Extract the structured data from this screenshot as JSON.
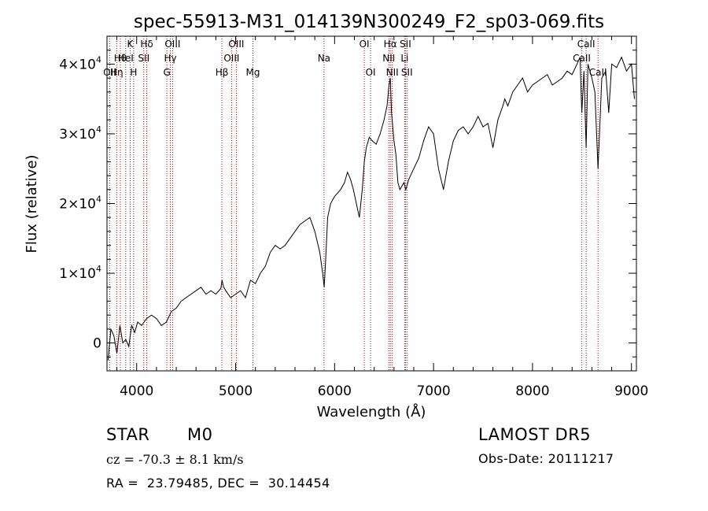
{
  "chart_data": {
    "type": "line",
    "title": "spec-55913-M31_014139N300249_F2_sp03-069.fits",
    "xlabel": "Wavelength (Å)",
    "ylabel": "Flux (relative)",
    "xlim": [
      3700,
      9050
    ],
    "ylim": [
      -4000,
      44000
    ],
    "x_ticks": [
      4000,
      5000,
      6000,
      7000,
      8000,
      9000
    ],
    "x_tick_labels": [
      "4000",
      "5000",
      "6000",
      "7000",
      "8000",
      "9000"
    ],
    "y_ticks": [
      0,
      10000,
      20000,
      30000,
      40000
    ],
    "y_tick_labels": [
      {
        "base": "0",
        "exp": ""
      },
      {
        "base": "1×10",
        "exp": "4"
      },
      {
        "base": "2×10",
        "exp": "4"
      },
      {
        "base": "3×10",
        "exp": "4"
      },
      {
        "base": "4×10",
        "exp": "4"
      }
    ],
    "line_color": "#000000",
    "marker_color": "#aa0000",
    "series": [
      {
        "x": [
          3710,
          3740,
          3770,
          3800,
          3830,
          3860,
          3890,
          3920,
          3950,
          3980,
          4010,
          4050,
          4100,
          4150,
          4200,
          4250,
          4300,
          4350,
          4400,
          4450,
          4500,
          4550,
          4600,
          4650,
          4700,
          4750,
          4800,
          4850,
          4862,
          4880,
          4900,
          4950,
          5000,
          5050,
          5100,
          5150,
          5200,
          5250,
          5300,
          5350,
          5400,
          5450,
          5500,
          5550,
          5600,
          5650,
          5700,
          5750,
          5800,
          5850,
          5880,
          5895,
          5910,
          5930,
          5960,
          6000,
          6030,
          6060,
          6100,
          6130,
          6160,
          6190,
          6220,
          6250,
          6280,
          6300,
          6320,
          6350,
          6380,
          6420,
          6460,
          6500,
          6530,
          6550,
          6563,
          6575,
          6600,
          6620,
          6640,
          6660,
          6680,
          6700,
          6720,
          6750,
          6800,
          6850,
          6900,
          6950,
          7000,
          7050,
          7100,
          7150,
          7200,
          7250,
          7300,
          7350,
          7400,
          7450,
          7500,
          7550,
          7600,
          7650,
          7700,
          7720,
          7750,
          7800,
          7850,
          7900,
          7950,
          8000,
          8050,
          8100,
          8150,
          8200,
          8250,
          8300,
          8350,
          8400,
          8450,
          8480,
          8498,
          8520,
          8542,
          8560,
          8600,
          8630,
          8662,
          8700,
          8740,
          8770,
          8800,
          8850,
          8900,
          8950,
          9000,
          9030
        ],
        "y": [
          -2500,
          2000,
          1000,
          -1500,
          2500,
          0,
          500,
          -500,
          2500,
          1500,
          3000,
          2500,
          3500,
          4000,
          3500,
          2500,
          3000,
          4500,
          5000,
          6000,
          6500,
          7000,
          7500,
          8000,
          7000,
          7500,
          7000,
          7800,
          9000,
          8000,
          7500,
          6500,
          7000,
          7500,
          6500,
          9000,
          8500,
          10000,
          11000,
          13000,
          14000,
          13500,
          14000,
          15000,
          16000,
          17000,
          17500,
          18000,
          16000,
          13000,
          10000,
          8000,
          12000,
          18000,
          20000,
          21000,
          21500,
          22000,
          23000,
          24500,
          23500,
          22000,
          20000,
          18000,
          22000,
          26000,
          28000,
          29500,
          29000,
          28500,
          30000,
          32000,
          34000,
          37000,
          38000,
          33000,
          29000,
          27000,
          23000,
          22000,
          22500,
          23000,
          22000,
          23500,
          25000,
          26500,
          29000,
          31000,
          30000,
          25000,
          22000,
          26000,
          29000,
          30500,
          31000,
          30000,
          31000,
          32500,
          31000,
          31500,
          28000,
          32000,
          34000,
          35000,
          34000,
          36000,
          37000,
          38000,
          36000,
          37000,
          37500,
          38000,
          38500,
          37000,
          37500,
          38000,
          39000,
          38500,
          40000,
          41000,
          33000,
          39000,
          28000,
          40000,
          38000,
          36000,
          25000,
          38000,
          39000,
          33000,
          40000,
          39500,
          41000,
          39000,
          40000,
          35000
        ]
      }
    ],
    "line_markers": [
      {
        "x": 3727,
        "labels": [
          {
            "row": 2,
            "text": "OII"
          }
        ]
      },
      {
        "x": 3798,
        "labels": [
          {
            "row": 2,
            "text": "Hη"
          }
        ]
      },
      {
        "x": 3835,
        "labels": [
          {
            "row": 1,
            "text": "Hθ"
          }
        ]
      },
      {
        "x": 3889,
        "labels": [
          {
            "row": 1,
            "text": "HeI"
          }
        ]
      },
      {
        "x": 3934,
        "labels": [
          {
            "row": 0,
            "text": "K"
          }
        ]
      },
      {
        "x": 3969,
        "labels": [
          {
            "row": 2,
            "text": "H"
          }
        ]
      },
      {
        "x": 4072,
        "labels": [
          {
            "row": 1,
            "text": "SII"
          }
        ]
      },
      {
        "x": 4102,
        "labels": [
          {
            "row": 0,
            "text": "Hδ"
          }
        ]
      },
      {
        "x": 4305,
        "labels": [
          {
            "row": 2,
            "text": "G"
          }
        ]
      },
      {
        "x": 4340,
        "labels": [
          {
            "row": 1,
            "text": "Hγ"
          }
        ]
      },
      {
        "x": 4363,
        "labels": [
          {
            "row": 0,
            "text": "OIII"
          }
        ]
      },
      {
        "x": 4861,
        "labels": [
          {
            "row": 2,
            "text": "Hβ"
          }
        ]
      },
      {
        "x": 4959,
        "labels": [
          {
            "row": 1,
            "text": "OIII"
          }
        ]
      },
      {
        "x": 5007,
        "labels": [
          {
            "row": 0,
            "text": "OIII"
          }
        ]
      },
      {
        "x": 5175,
        "labels": [
          {
            "row": 2,
            "text": "Mg"
          }
        ]
      },
      {
        "x": 5893,
        "labels": [
          {
            "row": 1,
            "text": "Na"
          }
        ]
      },
      {
        "x": 6300,
        "labels": [
          {
            "row": 0,
            "text": "OI"
          }
        ]
      },
      {
        "x": 6364,
        "labels": [
          {
            "row": 2,
            "text": "OI"
          }
        ]
      },
      {
        "x": 6548,
        "labels": [
          {
            "row": 1,
            "text": "NII"
          }
        ]
      },
      {
        "x": 6563,
        "labels": [
          {
            "row": 0,
            "text": "Hα"
          }
        ]
      },
      {
        "x": 6583,
        "labels": [
          {
            "row": 2,
            "text": "NII"
          }
        ]
      },
      {
        "x": 6708,
        "labels": [
          {
            "row": 1,
            "text": "Li"
          }
        ]
      },
      {
        "x": 6716,
        "labels": [
          {
            "row": 0,
            "text": "SII"
          }
        ]
      },
      {
        "x": 6731,
        "labels": [
          {
            "row": 2,
            "text": "SII"
          }
        ]
      },
      {
        "x": 8498,
        "labels": [
          {
            "row": 1,
            "text": "CaII"
          }
        ]
      },
      {
        "x": 8542,
        "labels": [
          {
            "row": 0,
            "text": "CaII"
          }
        ]
      },
      {
        "x": 8662,
        "labels": [
          {
            "row": 2,
            "text": "CaII"
          }
        ]
      }
    ]
  },
  "info": {
    "object_class": "STAR",
    "subclass": "M0",
    "redshift_line": "cz = -70.3 ± 8.1 km/s",
    "coords_line": "RA =  23.79485, DEC =  30.14454",
    "survey": "LAMOST DR5",
    "obs_date": "Obs-Date: 20111217"
  }
}
